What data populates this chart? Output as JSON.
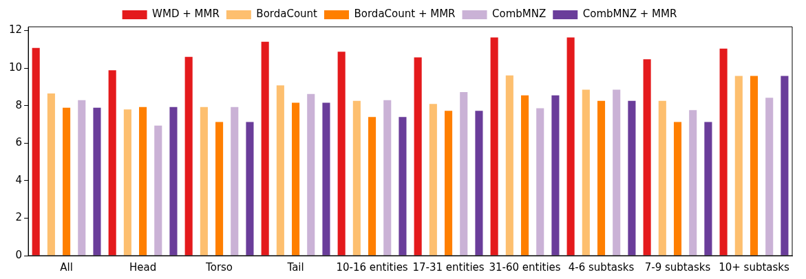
{
  "chart_data": {
    "type": "bar",
    "categories": [
      "All",
      "Head",
      "Torso",
      "Tail",
      "10-16 entities",
      "17-31 entities",
      "31-60 entities",
      "4-6 subtasks",
      "7-9 subtasks",
      "10+ subtasks"
    ],
    "series": [
      {
        "name": "WMD + MMR",
        "color": "#e41a1c",
        "values": [
          11.07,
          9.88,
          10.6,
          11.4,
          10.87,
          10.57,
          11.63,
          11.63,
          10.47,
          11.04
        ]
      },
      {
        "name": "BordaCount",
        "color": "#fdbf6f",
        "values": [
          8.65,
          7.79,
          7.92,
          9.08,
          8.25,
          8.09,
          9.61,
          8.85,
          8.25,
          9.58
        ]
      },
      {
        "name": "BordaCount + MMR",
        "color": "#ff7f00",
        "values": [
          7.89,
          7.92,
          7.13,
          8.15,
          7.39,
          7.72,
          8.55,
          8.25,
          7.13,
          9.58
        ]
      },
      {
        "name": "CombMNZ",
        "color": "#cab2d6",
        "values": [
          8.29,
          6.93,
          7.92,
          8.62,
          8.29,
          8.72,
          7.86,
          8.85,
          7.76,
          8.42
        ]
      },
      {
        "name": "CombMNZ + MMR",
        "color": "#6a3d9a",
        "values": [
          7.89,
          7.92,
          7.13,
          8.15,
          7.39,
          7.72,
          8.55,
          8.25,
          7.13,
          9.58
        ]
      }
    ],
    "ylim": [
      0,
      12.2
    ],
    "yticks": [
      0,
      2,
      4,
      6,
      8,
      10,
      12
    ],
    "grid": false,
    "legend": "top"
  }
}
